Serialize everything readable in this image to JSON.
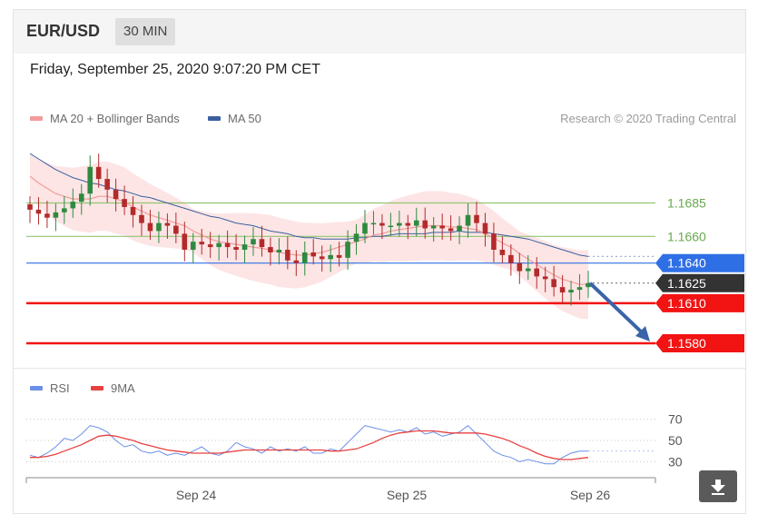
{
  "header": {
    "pair": "EUR/USD",
    "timeframe": "30 MIN"
  },
  "datetime": "Friday, September 25, 2020 9:07:20 PM CET",
  "legend": {
    "ma20_label": "MA 20 + Bollinger Bands",
    "ma50_label": "MA 50",
    "credit": "Research © 2020 Trading Central",
    "rsi_label": "RSI",
    "ma9_label": "9MA"
  },
  "colors": {
    "ma20": "#f29b9b",
    "ma50": "#3a5f9e",
    "bands": "#fde0e0",
    "bull": "#2e8a3f",
    "bear": "#b42a2a",
    "resistance": "#93c572",
    "pivot": "#2f6fe6",
    "support": "#f21313",
    "last": "#333333",
    "rsi": "#6a8fe8",
    "ma9": "#e84040"
  },
  "chart_data": [
    {
      "type": "candlestick",
      "title": "EUR/USD 30 MIN",
      "x_ticks": [
        "Sep 24",
        "Sep 25",
        "Sep 26"
      ],
      "ylim": [
        1.1565,
        1.1735
      ],
      "levels": [
        {
          "value": "1.1685",
          "price": 1.1685,
          "kind": "resistance"
        },
        {
          "value": "1.1660",
          "price": 1.166,
          "kind": "resistance"
        },
        {
          "value": "1.1640",
          "price": 1.164,
          "kind": "pivot"
        },
        {
          "value": "1.1625",
          "price": 1.1625,
          "kind": "last"
        },
        {
          "value": "1.1610",
          "price": 1.161,
          "kind": "support"
        },
        {
          "value": "1.1580",
          "price": 1.158,
          "kind": "support"
        }
      ],
      "forecast": {
        "from_price": 1.1625,
        "to_price": 1.158
      },
      "close_series": [
        1.168,
        1.1677,
        1.1674,
        1.1678,
        1.1681,
        1.1686,
        1.1692,
        1.1712,
        1.1703,
        1.1695,
        1.1688,
        1.1682,
        1.1676,
        1.167,
        1.1664,
        1.167,
        1.1668,
        1.1662,
        1.165,
        1.1656,
        1.1654,
        1.1652,
        1.1655,
        1.1652,
        1.165,
        1.1654,
        1.1658,
        1.1652,
        1.1648,
        1.165,
        1.1642,
        1.164,
        1.1648,
        1.1645,
        1.1643,
        1.1646,
        1.1644,
        1.1656,
        1.1662,
        1.167,
        1.167,
        1.1668,
        1.1668,
        1.167,
        1.1668,
        1.1672,
        1.1666,
        1.1668,
        1.1666,
        1.1664,
        1.1668,
        1.1676,
        1.167,
        1.1662,
        1.165,
        1.1646,
        1.164,
        1.1634,
        1.1636,
        1.163,
        1.1628,
        1.1622,
        1.1618,
        1.162,
        1.1622,
        1.1625
      ],
      "ma20": [
        1.1705,
        1.17,
        1.1696,
        1.1692,
        1.169,
        1.1688,
        1.1688,
        1.1688,
        1.169,
        1.169,
        1.1688,
        1.1686,
        1.1682,
        1.1679,
        1.1676,
        1.1674,
        1.1672,
        1.167,
        1.1668,
        1.1664,
        1.1661,
        1.1658,
        1.1656,
        1.1655,
        1.1654,
        1.1653,
        1.1652,
        1.1651,
        1.165,
        1.1648,
        1.1647,
        1.1646,
        1.1646,
        1.1647,
        1.1648,
        1.165,
        1.1652,
        1.1654,
        1.1656,
        1.1658,
        1.1661,
        1.1662,
        1.1664,
        1.1665,
        1.1666,
        1.1667,
        1.1668,
        1.1668,
        1.1668,
        1.1667,
        1.1667,
        1.1666,
        1.1665,
        1.1662,
        1.1659,
        1.1655,
        1.1652,
        1.1647,
        1.1643,
        1.1639,
        1.1635,
        1.1631,
        1.1628,
        1.1626,
        1.1624,
        1.1624
      ],
      "ma50": [
        1.1722,
        1.1718,
        1.1714,
        1.171,
        1.1707,
        1.1704,
        1.1702,
        1.17,
        1.1699,
        1.1697,
        1.1695,
        1.1694,
        1.1692,
        1.169,
        1.1689,
        1.1687,
        1.1685,
        1.1683,
        1.1681,
        1.1679,
        1.1677,
        1.1675,
        1.1674,
        1.1672,
        1.167,
        1.1669,
        1.1668,
        1.1666,
        1.1664,
        1.1663,
        1.1662,
        1.166,
        1.1659,
        1.1659,
        1.1658,
        1.1658,
        1.1658,
        1.1658,
        1.1659,
        1.1659,
        1.166,
        1.166,
        1.1661,
        1.1662,
        1.1662,
        1.1662,
        1.1662,
        1.1663,
        1.1663,
        1.1663,
        1.1664,
        1.1663,
        1.1663,
        1.1663,
        1.1662,
        1.1661,
        1.166,
        1.1659,
        1.1658,
        1.1656,
        1.1654,
        1.1652,
        1.165,
        1.1648,
        1.1646,
        1.1645
      ]
    },
    {
      "type": "line",
      "title": "RSI",
      "y_ticks": [
        "70",
        "50",
        "30"
      ],
      "ylim": [
        20,
        80
      ],
      "series": [
        {
          "name": "RSI",
          "values": [
            36,
            34,
            38,
            44,
            52,
            50,
            56,
            64,
            62,
            58,
            50,
            44,
            46,
            40,
            38,
            40,
            36,
            38,
            36,
            40,
            44,
            38,
            36,
            40,
            48,
            44,
            42,
            38,
            44,
            40,
            42,
            40,
            44,
            38,
            38,
            42,
            40,
            48,
            56,
            64,
            62,
            60,
            58,
            60,
            58,
            62,
            56,
            58,
            54,
            56,
            58,
            64,
            56,
            48,
            40,
            36,
            34,
            30,
            32,
            30,
            28,
            28,
            34,
            38,
            40,
            40
          ]
        },
        {
          "name": "9MA",
          "values": [
            34,
            34,
            35,
            37,
            40,
            43,
            46,
            50,
            54,
            55,
            54,
            52,
            50,
            47,
            45,
            43,
            41,
            40,
            39,
            38,
            38,
            38,
            38,
            39,
            40,
            41,
            41,
            41,
            41,
            41,
            41,
            41,
            41,
            41,
            41,
            40,
            40,
            41,
            42,
            45,
            48,
            52,
            55,
            57,
            58,
            59,
            59,
            59,
            58,
            57,
            57,
            57,
            57,
            56,
            54,
            52,
            49,
            45,
            42,
            38,
            35,
            33,
            32,
            32,
            33,
            34
          ]
        }
      ]
    }
  ]
}
